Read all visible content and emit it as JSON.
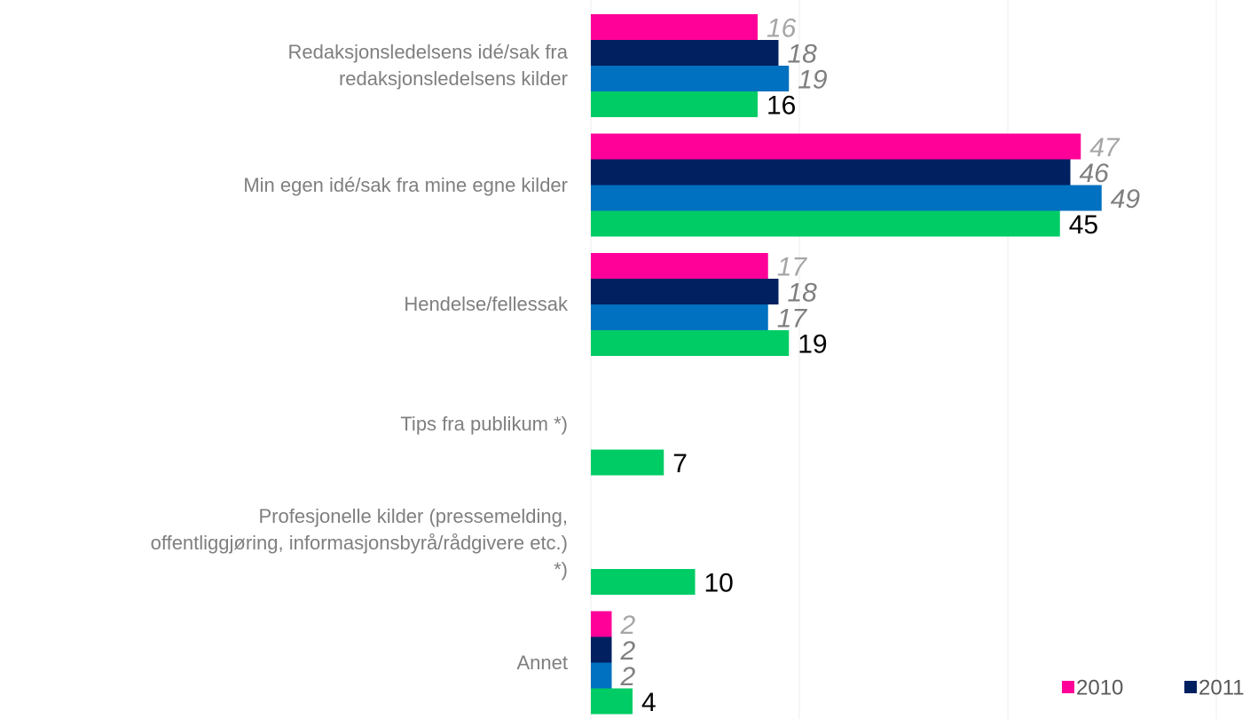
{
  "chart_data": {
    "type": "bar",
    "orientation": "horizontal",
    "categories": [
      "Redaksjonsledelsens idé/sak fra\nredaksjonsledelsens kilder",
      "Min egen idé/sak fra mine egne kilder",
      "Hendelse/fellessak",
      "Tips fra publikum *)",
      "Profesjonelle kilder (pressemelding,\noffentliggjøring, informasjonsbyrå/rådgivere etc.)\n*)",
      "Annet"
    ],
    "series": [
      {
        "name": "2010",
        "color": "#ff0099",
        "values": [
          16,
          47,
          17,
          null,
          null,
          2
        ]
      },
      {
        "name": "2011",
        "color": "#002060",
        "values": [
          18,
          46,
          18,
          null,
          null,
          2
        ]
      },
      {
        "color": "#0070c0",
        "values": [
          19,
          49,
          17,
          null,
          null,
          2
        ]
      },
      {
        "color": "#00cc66",
        "values": [
          16,
          45,
          19,
          7,
          10,
          4
        ]
      }
    ],
    "xlim": [
      0,
      64
    ],
    "xticks": [
      0,
      20,
      40,
      60
    ],
    "grid": true,
    "legend": "bottom-right"
  }
}
